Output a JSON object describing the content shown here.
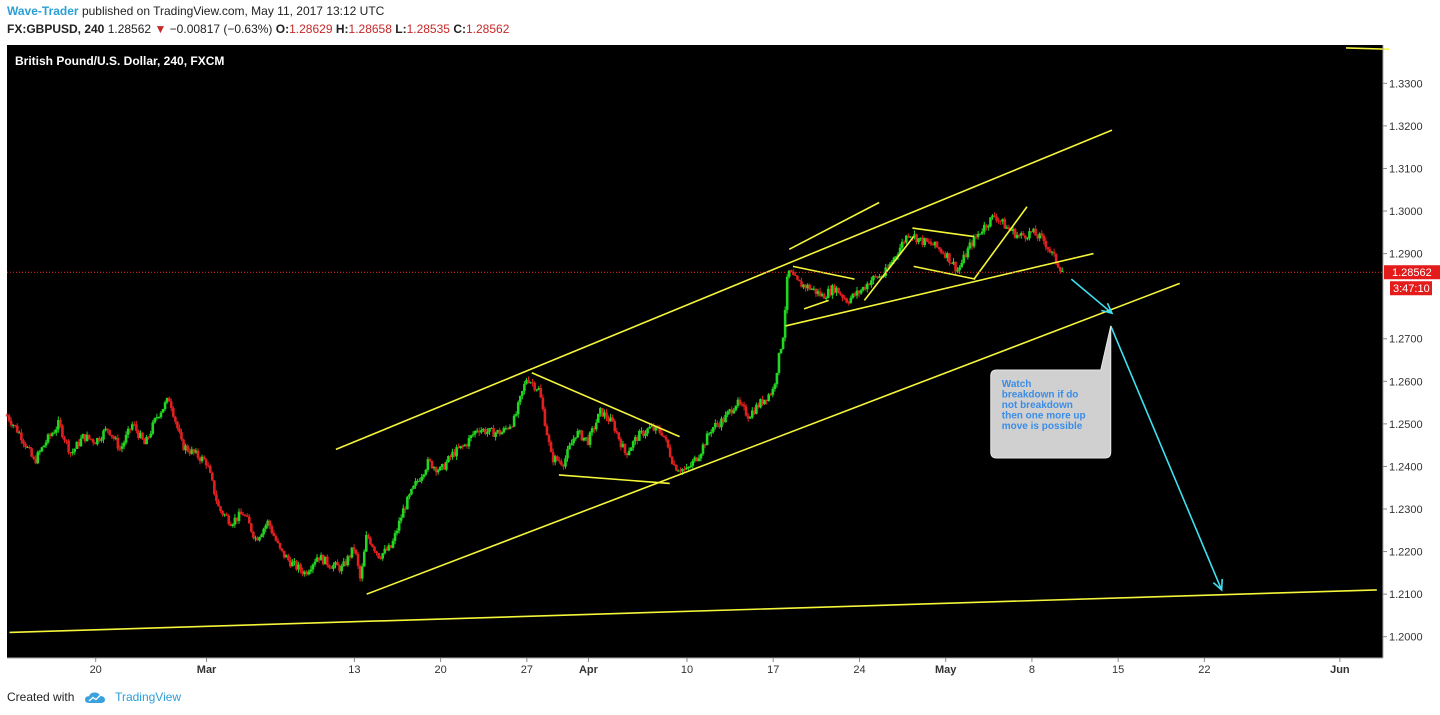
{
  "header": {
    "author": "Wave-Trader",
    "published": "published on TradingView.com, May 11, 2017 13:12 UTC",
    "symbol": "FX:GBPUSD, 240",
    "last": "1.28562",
    "change": "−0.00817 (−0.63%)",
    "open_label": "O:",
    "open": "1.28629",
    "high_label": "H:",
    "high": "1.28658",
    "low_label": "L:",
    "low": "1.28535",
    "close_label": "C:",
    "close": "1.28562"
  },
  "footer": {
    "created_with": "Created with",
    "brand": "TradingView",
    "logo_icon": "tradingview-cloud-icon"
  },
  "colors": {
    "background": "#000000",
    "up": "#22d622",
    "down": "#e02020",
    "trendline": "#f5f53a",
    "projection": "#3ee0f0",
    "price_line": "#ff2222",
    "axis_text": "#333333"
  },
  "chart_data": {
    "type": "candlestick",
    "title": "British Pound/U.S. Dollar, 240, FXCM",
    "ylim": [
      1.195,
      1.339
    ],
    "y_ticks": [
      "1.3300",
      "1.3200",
      "1.3100",
      "1.3000",
      "1.2900",
      "1.2700",
      "1.2600",
      "1.2500",
      "1.2400",
      "1.2300",
      "1.2200",
      "1.2100",
      "1.2000"
    ],
    "x_ticks": [
      {
        "day": 20,
        "label": "20",
        "bold": false
      },
      {
        "day": 29,
        "label": "Mar",
        "bold": true
      },
      {
        "day": 41,
        "label": "13",
        "bold": false
      },
      {
        "day": 48,
        "label": "20",
        "bold": false
      },
      {
        "day": 55,
        "label": "27",
        "bold": false
      },
      {
        "day": 60,
        "label": "Apr",
        "bold": true
      },
      {
        "day": 68,
        "label": "10",
        "bold": false
      },
      {
        "day": 75,
        "label": "17",
        "bold": false
      },
      {
        "day": 82,
        "label": "24",
        "bold": false
      },
      {
        "day": 89,
        "label": "May",
        "bold": true
      },
      {
        "day": 96,
        "label": "8",
        "bold": false
      },
      {
        "day": 103,
        "label": "15",
        "bold": false
      },
      {
        "day": 110,
        "label": "22",
        "bold": false
      },
      {
        "day": 121,
        "label": "Jun",
        "bold": true
      }
    ],
    "x_range_days": [
      12.8,
      124.5
    ],
    "last_price": 1.28562,
    "last_price_label": "1.28562",
    "countdown_label": "3:47:10",
    "price_path": [
      [
        12.8,
        1.252
      ],
      [
        14,
        1.247
      ],
      [
        15,
        1.241
      ],
      [
        16,
        1.246
      ],
      [
        17,
        1.25
      ],
      [
        18,
        1.243
      ],
      [
        19,
        1.247
      ],
      [
        20,
        1.246
      ],
      [
        21,
        1.249
      ],
      [
        22,
        1.244
      ],
      [
        23,
        1.25
      ],
      [
        24,
        1.245
      ],
      [
        25,
        1.252
      ],
      [
        26,
        1.256
      ],
      [
        27,
        1.245
      ],
      [
        28,
        1.243
      ],
      [
        29,
        1.241
      ],
      [
        30,
        1.23
      ],
      [
        31,
        1.227
      ],
      [
        32,
        1.229
      ],
      [
        33,
        1.223
      ],
      [
        34,
        1.227
      ],
      [
        35,
        1.22
      ],
      [
        36,
        1.217
      ],
      [
        37,
        1.215
      ],
      [
        38,
        1.219
      ],
      [
        39,
        1.217
      ],
      [
        40,
        1.216
      ],
      [
        41,
        1.221
      ],
      [
        41.5,
        1.213
      ],
      [
        42,
        1.224
      ],
      [
        43,
        1.219
      ],
      [
        44,
        1.221
      ],
      [
        45,
        1.23
      ],
      [
        46,
        1.236
      ],
      [
        47,
        1.241
      ],
      [
        48,
        1.239
      ],
      [
        49,
        1.243
      ],
      [
        50,
        1.245
      ],
      [
        51,
        1.249
      ],
      [
        52,
        1.248
      ],
      [
        53,
        1.248
      ],
      [
        54,
        1.251
      ],
      [
        55,
        1.261
      ],
      [
        56,
        1.258
      ],
      [
        57,
        1.242
      ],
      [
        58,
        1.241
      ],
      [
        59,
        1.248
      ],
      [
        60,
        1.246
      ],
      [
        61,
        1.253
      ],
      [
        62,
        1.25
      ],
      [
        63,
        1.243
      ],
      [
        64,
        1.247
      ],
      [
        65,
        1.249
      ],
      [
        66,
        1.248
      ],
      [
        67,
        1.24
      ],
      [
        68,
        1.239
      ],
      [
        69,
        1.243
      ],
      [
        70,
        1.249
      ],
      [
        71,
        1.251
      ],
      [
        72,
        1.255
      ],
      [
        73,
        1.252
      ],
      [
        74,
        1.255
      ],
      [
        75,
        1.258
      ],
      [
        75.8,
        1.271
      ],
      [
        76.2,
        1.286
      ],
      [
        77,
        1.283
      ],
      [
        78,
        1.282
      ],
      [
        79,
        1.28
      ],
      [
        80,
        1.282
      ],
      [
        81,
        1.279
      ],
      [
        82,
        1.281
      ],
      [
        83,
        1.284
      ],
      [
        84,
        1.285
      ],
      [
        85,
        1.29
      ],
      [
        86,
        1.295
      ],
      [
        87,
        1.293
      ],
      [
        88,
        1.292
      ],
      [
        89,
        1.29
      ],
      [
        90,
        1.286
      ],
      [
        91,
        1.292
      ],
      [
        92,
        1.296
      ],
      [
        93,
        1.299
      ],
      [
        94,
        1.296
      ],
      [
        95,
        1.294
      ],
      [
        96,
        1.295
      ],
      [
        97,
        1.293
      ],
      [
        98,
        1.288
      ],
      [
        98.6,
        1.2856
      ]
    ],
    "trendlines": [
      {
        "kind": "lower-support",
        "x": [
          13,
          124
        ],
        "y": [
          1.201,
          1.211
        ]
      },
      {
        "kind": "channel-upper",
        "x": [
          39.5,
          102.5
        ],
        "y": [
          1.244,
          1.319
        ]
      },
      {
        "kind": "channel-lower",
        "x": [
          42,
          108
        ],
        "y": [
          1.21,
          1.283
        ]
      },
      {
        "kind": "top-edge",
        "x": [
          121.5,
          125
        ],
        "y": [
          1.3383,
          1.338
        ]
      },
      {
        "kind": "flag-top",
        "x": [
          55.4,
          67.4
        ],
        "y": [
          1.262,
          1.247
        ]
      },
      {
        "kind": "flag-bottom",
        "x": [
          57.6,
          66.6
        ],
        "y": [
          1.238,
          1.236
        ]
      },
      {
        "kind": "wedge-top",
        "x": [
          76.3,
          83.6
        ],
        "y": [
          1.291,
          1.302
        ]
      },
      {
        "kind": "wedge-bottom",
        "x": [
          76.0,
          101
        ],
        "y": [
          1.273,
          1.29
        ]
      },
      {
        "kind": "pennant-top",
        "x": [
          76.6,
          81.6
        ],
        "y": [
          1.287,
          1.284
        ]
      },
      {
        "kind": "pennant-bottom",
        "x": [
          77.5,
          79.5
        ],
        "y": [
          1.277,
          1.279
        ]
      },
      {
        "kind": "leg-a",
        "x": [
          82.4,
          86.4
        ],
        "y": [
          1.279,
          1.294
        ]
      },
      {
        "kind": "leg-b",
        "x": [
          86.3,
          91.3
        ],
        "y": [
          1.296,
          1.294
        ]
      },
      {
        "kind": "leg-c",
        "x": [
          86.4,
          91.4
        ],
        "y": [
          1.287,
          1.284
        ]
      },
      {
        "kind": "leg-d",
        "x": [
          91.3,
          95.6
        ],
        "y": [
          1.284,
          1.301
        ]
      }
    ],
    "projections": [
      {
        "x": [
          99.2,
          102.5
        ],
        "y": [
          1.284,
          1.276
        ]
      },
      {
        "x": [
          102.4,
          111.4
        ],
        "y": [
          1.273,
          1.211
        ]
      }
    ],
    "annotation": {
      "lines": [
        "Watch",
        "breakdown if do",
        "not breakdown",
        "then one more up",
        "move is possible"
      ]
    }
  }
}
